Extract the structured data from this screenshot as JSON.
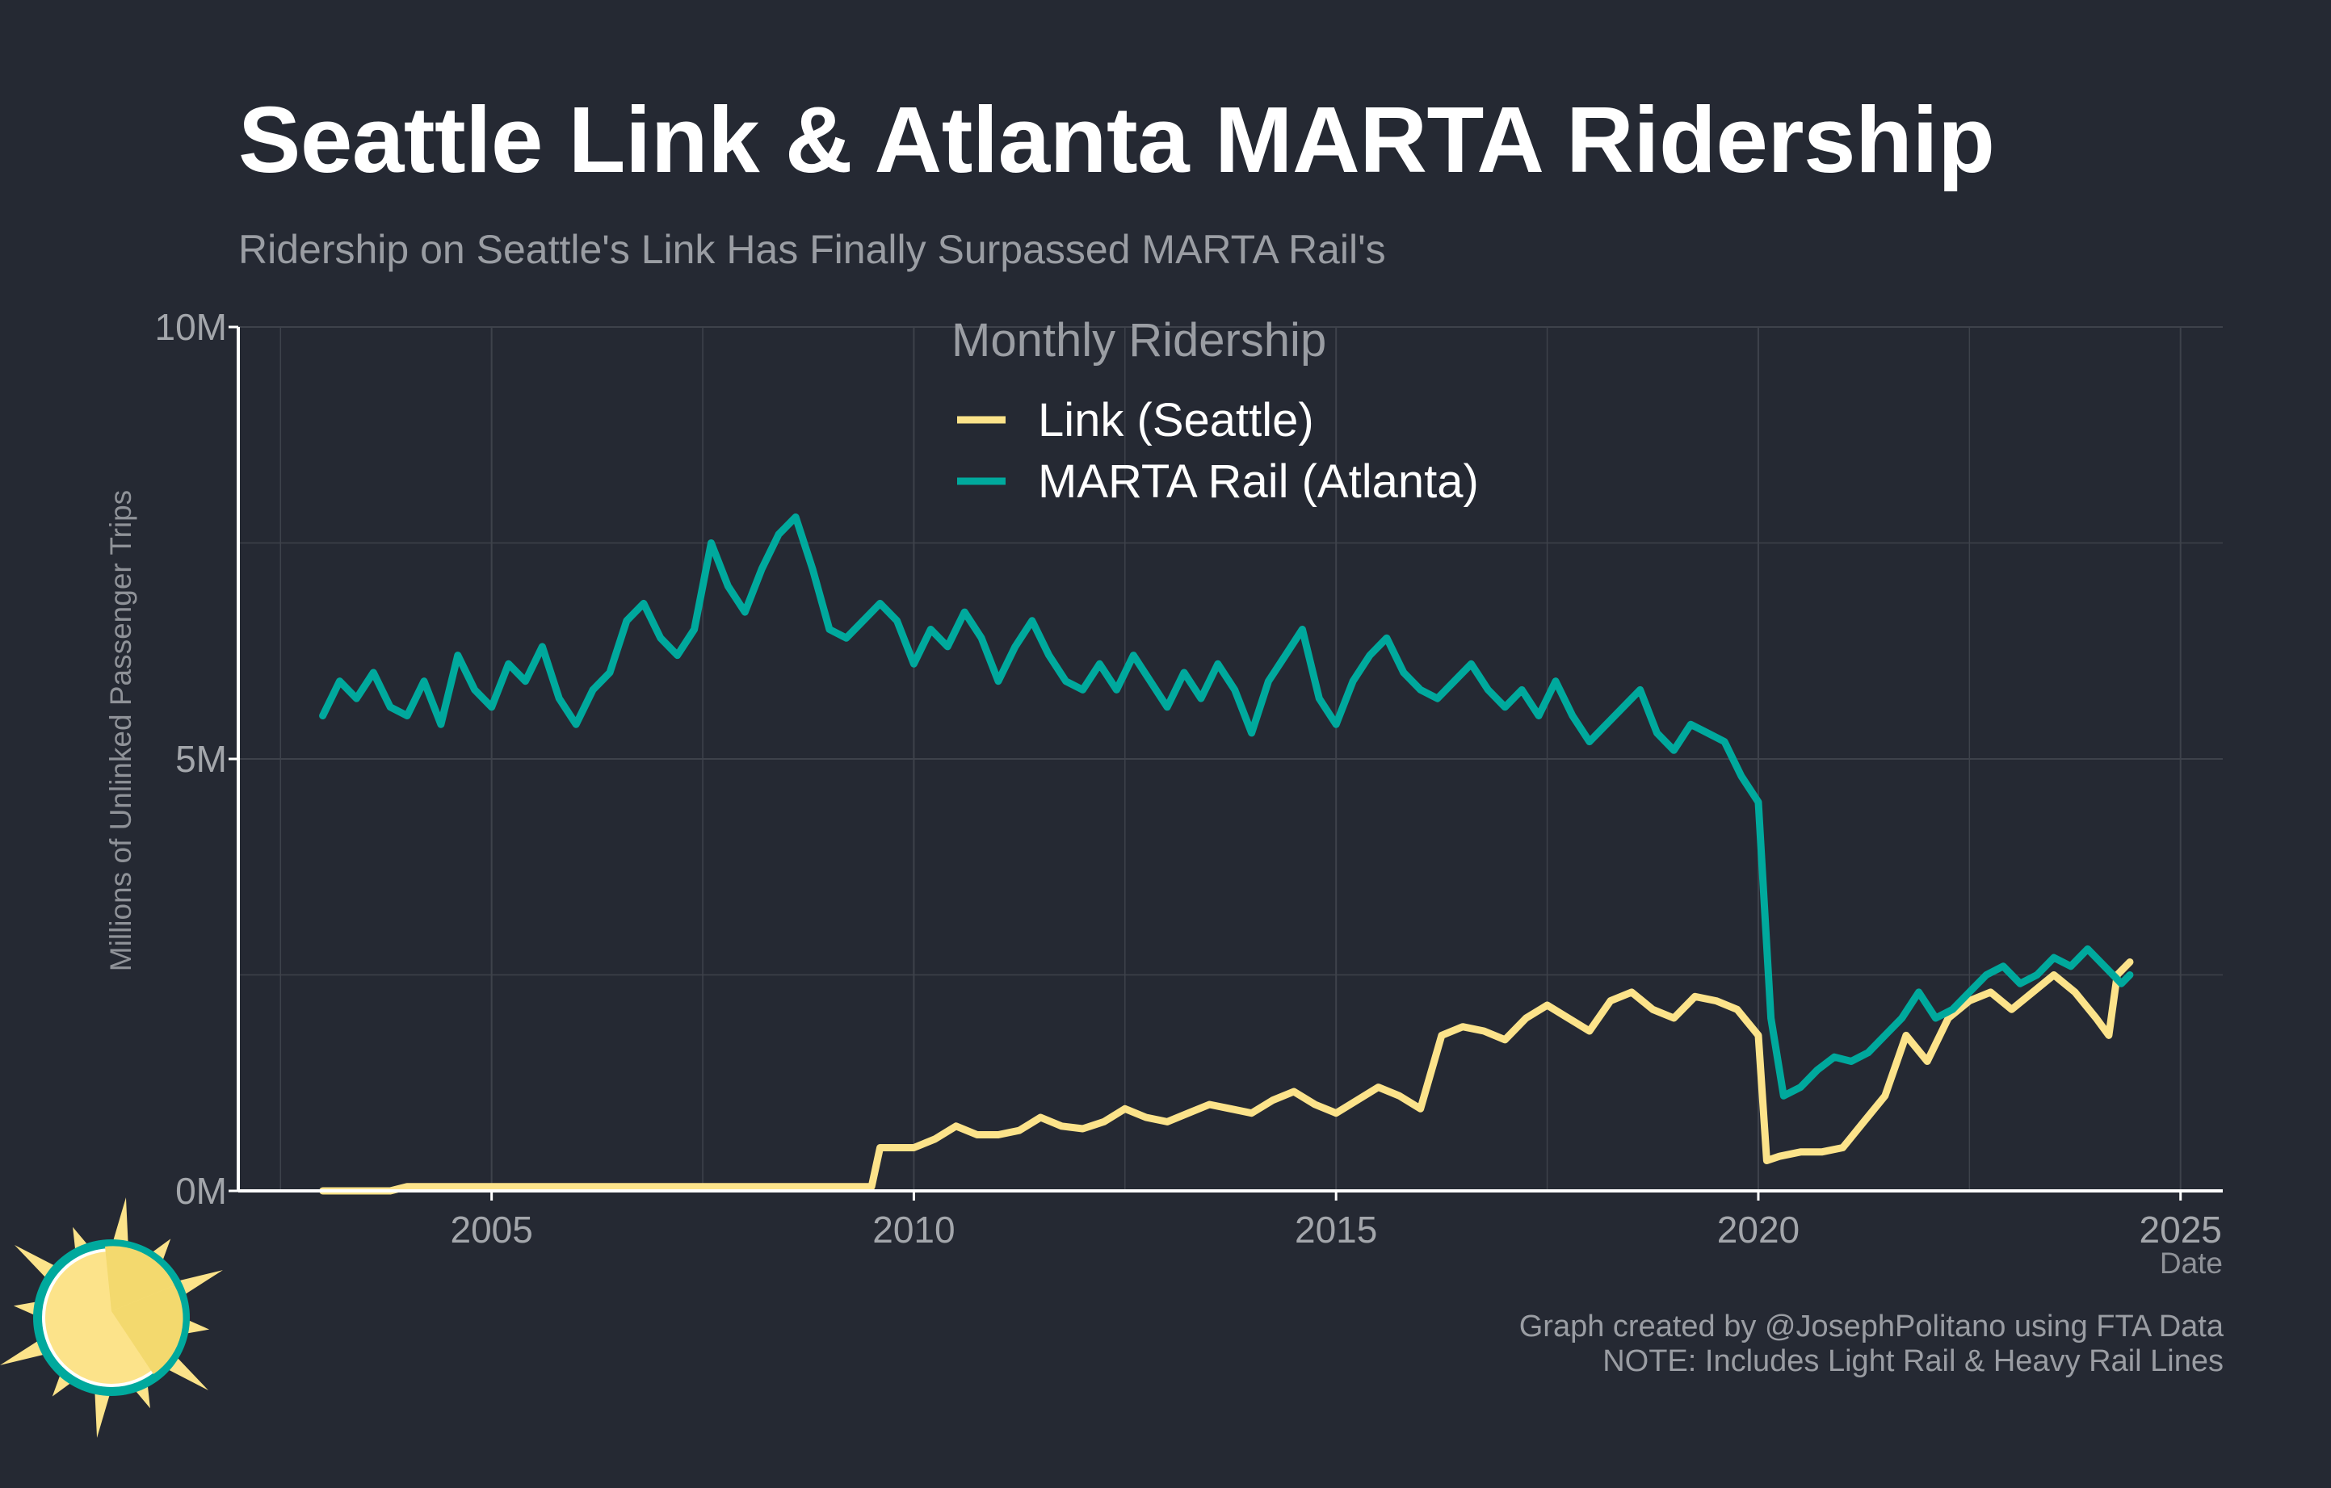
{
  "title": "Seattle Link & Atlanta MARTA Ridership",
  "subtitle": "Ridership on Seattle's Link Has Finally Surpassed MARTA Rail's",
  "captions": {
    "line1": "Graph created by @JosephPolitano using FTA Data",
    "line2": "NOTE: Includes Light Rail & Heavy Rail Lines"
  },
  "logo_icon": "sun-logo-icon",
  "colors": {
    "background": "#252933",
    "link": "#FCE38A",
    "marta": "#00A99D",
    "grid": "#3e424b",
    "axis": "#ffffff"
  },
  "chart_data": {
    "type": "line",
    "xlabel": "Date",
    "ylabel": "Millions of Unlinked Passenger Trips",
    "xlim": [
      2002.0,
      2025.5
    ],
    "ylim": [
      0,
      10
    ],
    "x_ticks": [
      2005,
      2010,
      2015,
      2020,
      2025
    ],
    "x_tick_labels": [
      "2005",
      "2010",
      "2015",
      "2020",
      "2025"
    ],
    "y_ticks": [
      0,
      5,
      10
    ],
    "y_tick_labels": [
      "0M",
      "5M",
      "10M"
    ],
    "grid": true,
    "legend": {
      "title": "Monthly Ridership",
      "position": "top-center",
      "entries": [
        "Link (Seattle)",
        "MARTA Rail (Atlanta)"
      ]
    },
    "series": [
      {
        "name": "Link (Seattle)",
        "color": "#FCE38A",
        "x": [
          2003.0,
          2003.5,
          2003.8,
          2004.0,
          2005.0,
          2006.0,
          2007.0,
          2008.0,
          2009.0,
          2009.5,
          2009.6,
          2009.75,
          2010.0,
          2010.25,
          2010.5,
          2010.75,
          2011.0,
          2011.25,
          2011.5,
          2011.75,
          2012.0,
          2012.25,
          2012.5,
          2012.75,
          2013.0,
          2013.25,
          2013.5,
          2013.75,
          2014.0,
          2014.25,
          2014.5,
          2014.75,
          2015.0,
          2015.25,
          2015.5,
          2015.75,
          2016.0,
          2016.25,
          2016.5,
          2016.75,
          2017.0,
          2017.25,
          2017.5,
          2017.75,
          2018.0,
          2018.25,
          2018.5,
          2018.75,
          2019.0,
          2019.25,
          2019.5,
          2019.75,
          2020.0,
          2020.1,
          2020.25,
          2020.5,
          2020.75,
          2021.0,
          2021.25,
          2021.5,
          2021.75,
          2022.0,
          2022.25,
          2022.5,
          2022.75,
          2023.0,
          2023.25,
          2023.5,
          2023.75,
          2024.0,
          2024.15,
          2024.25,
          2024.4
        ],
        "values": [
          0.0,
          0.0,
          0.0,
          0.05,
          0.05,
          0.05,
          0.05,
          0.05,
          0.05,
          0.05,
          0.5,
          0.5,
          0.5,
          0.6,
          0.75,
          0.65,
          0.65,
          0.7,
          0.85,
          0.75,
          0.72,
          0.8,
          0.95,
          0.85,
          0.8,
          0.9,
          1.0,
          0.95,
          0.9,
          1.05,
          1.15,
          1.0,
          0.9,
          1.05,
          1.2,
          1.1,
          0.95,
          1.8,
          1.9,
          1.85,
          1.75,
          2.0,
          2.15,
          2.0,
          1.85,
          2.2,
          2.3,
          2.1,
          2.0,
          2.25,
          2.2,
          2.1,
          1.8,
          0.35,
          0.4,
          0.45,
          0.45,
          0.5,
          0.8,
          1.1,
          1.8,
          1.5,
          2.0,
          2.2,
          2.3,
          2.1,
          2.3,
          2.5,
          2.3,
          2.0,
          1.8,
          2.5,
          2.65
        ]
      },
      {
        "name": "MARTA Rail (Atlanta)",
        "color": "#00A99D",
        "x": [
          2003.0,
          2003.2,
          2003.4,
          2003.6,
          2003.8,
          2004.0,
          2004.2,
          2004.4,
          2004.6,
          2004.8,
          2005.0,
          2005.2,
          2005.4,
          2005.6,
          2005.8,
          2006.0,
          2006.2,
          2006.4,
          2006.6,
          2006.8,
          2007.0,
          2007.2,
          2007.4,
          2007.6,
          2007.8,
          2008.0,
          2008.2,
          2008.4,
          2008.6,
          2008.8,
          2009.0,
          2009.2,
          2009.4,
          2009.6,
          2009.8,
          2010.0,
          2010.2,
          2010.4,
          2010.6,
          2010.8,
          2011.0,
          2011.2,
          2011.4,
          2011.6,
          2011.8,
          2012.0,
          2012.2,
          2012.4,
          2012.6,
          2012.8,
          2013.0,
          2013.2,
          2013.4,
          2013.6,
          2013.8,
          2014.0,
          2014.2,
          2014.4,
          2014.6,
          2014.8,
          2015.0,
          2015.2,
          2015.4,
          2015.6,
          2015.8,
          2016.0,
          2016.2,
          2016.4,
          2016.6,
          2016.8,
          2017.0,
          2017.2,
          2017.4,
          2017.6,
          2017.8,
          2018.0,
          2018.2,
          2018.4,
          2018.6,
          2018.8,
          2019.0,
          2019.2,
          2019.4,
          2019.6,
          2019.8,
          2020.0,
          2020.15,
          2020.3,
          2020.5,
          2020.7,
          2020.9,
          2021.1,
          2021.3,
          2021.5,
          2021.7,
          2021.9,
          2022.1,
          2022.3,
          2022.5,
          2022.7,
          2022.9,
          2023.1,
          2023.3,
          2023.5,
          2023.7,
          2023.9,
          2024.1,
          2024.3,
          2024.4
        ],
        "values": [
          5.5,
          5.9,
          5.7,
          6.0,
          5.6,
          5.5,
          5.9,
          5.4,
          6.2,
          5.8,
          5.6,
          6.1,
          5.9,
          6.3,
          5.7,
          5.4,
          5.8,
          6.0,
          6.6,
          6.8,
          6.4,
          6.2,
          6.5,
          7.5,
          7.0,
          6.7,
          7.2,
          7.6,
          7.8,
          7.2,
          6.5,
          6.4,
          6.6,
          6.8,
          6.6,
          6.1,
          6.5,
          6.3,
          6.7,
          6.4,
          5.9,
          6.3,
          6.6,
          6.2,
          5.9,
          5.8,
          6.1,
          5.8,
          6.2,
          5.9,
          5.6,
          6.0,
          5.7,
          6.1,
          5.8,
          5.3,
          5.9,
          6.2,
          6.5,
          5.7,
          5.4,
          5.9,
          6.2,
          6.4,
          6.0,
          5.8,
          5.7,
          5.9,
          6.1,
          5.8,
          5.6,
          5.8,
          5.5,
          5.9,
          5.5,
          5.2,
          5.4,
          5.6,
          5.8,
          5.3,
          5.1,
          5.4,
          5.3,
          5.2,
          4.8,
          4.5,
          2.0,
          1.1,
          1.2,
          1.4,
          1.55,
          1.5,
          1.6,
          1.8,
          2.0,
          2.3,
          2.0,
          2.1,
          2.3,
          2.5,
          2.6,
          2.4,
          2.5,
          2.7,
          2.6,
          2.8,
          2.6,
          2.4,
          2.5
        ]
      }
    ]
  }
}
